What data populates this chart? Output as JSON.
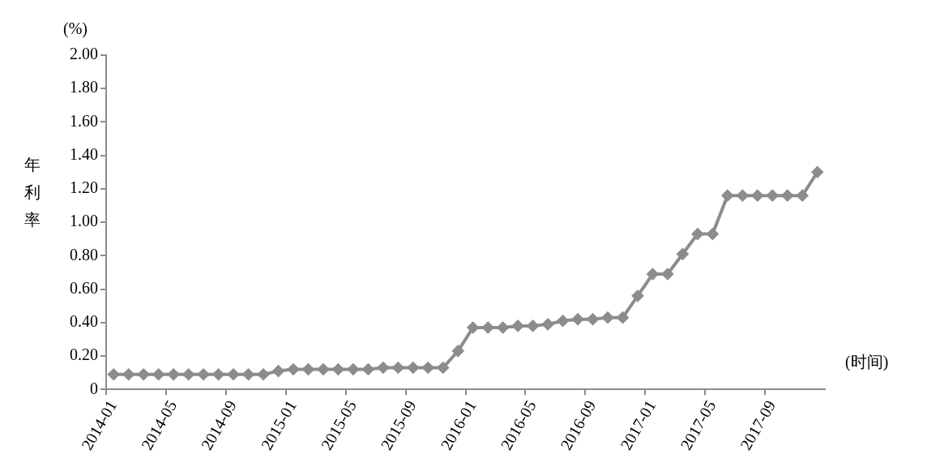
{
  "chart_data": {
    "type": "line",
    "ylabel": "年利率",
    "xlabel": "(时间)",
    "annotations": [
      "(%)"
    ],
    "categories": [
      "2014-01",
      null,
      null,
      null,
      "2014-05",
      null,
      null,
      null,
      "2014-09",
      null,
      null,
      null,
      "2015-01",
      null,
      null,
      null,
      "2015-05",
      null,
      null,
      null,
      "2015-09",
      null,
      null,
      null,
      "2016-01",
      null,
      null,
      null,
      "2016-05",
      null,
      null,
      null,
      "2016-09",
      null,
      null,
      null,
      "2017-01",
      null,
      null,
      null,
      "2017-05",
      null,
      null,
      null,
      "2017-09",
      null,
      null,
      null
    ],
    "series": [
      {
        "color": "#8c8c8c",
        "values": [
          0.09,
          0.09,
          0.09,
          0.09,
          0.09,
          0.09,
          0.09,
          0.09,
          0.09,
          0.09,
          0.09,
          0.11,
          0.12,
          0.12,
          0.12,
          0.12,
          0.12,
          0.12,
          0.13,
          0.13,
          0.13,
          0.13,
          0.13,
          0.23,
          0.37,
          0.37,
          0.37,
          0.38,
          0.38,
          0.39,
          0.41,
          0.42,
          0.42,
          0.43,
          0.43,
          0.56,
          0.69,
          0.69,
          0.81,
          0.93,
          0.93,
          1.16,
          1.16,
          1.16,
          1.16,
          1.16,
          1.16,
          1.3
        ]
      }
    ],
    "ylim": [
      0,
      2
    ],
    "yticks": [
      0,
      {
        "value": 0.2,
        "label": "0.20"
      },
      {
        "value": 0.4,
        "label": "0.40"
      },
      {
        "value": 0.6,
        "label": "0.60"
      },
      {
        "value": 0.8,
        "label": "0.80"
      },
      {
        "value": 1,
        "label": "1.00"
      },
      {
        "value": 1.2,
        "label": "1.20"
      },
      {
        "value": 1.4,
        "label": "1.40"
      },
      {
        "value": 1.6,
        "label": "1.60"
      },
      {
        "value": 1.8,
        "label": "1.80"
      },
      {
        "value": 2,
        "label": "2.00"
      }
    ],
    "grid": false,
    "legend": false,
    "marker": "diamond",
    "line_style": "solid"
  }
}
